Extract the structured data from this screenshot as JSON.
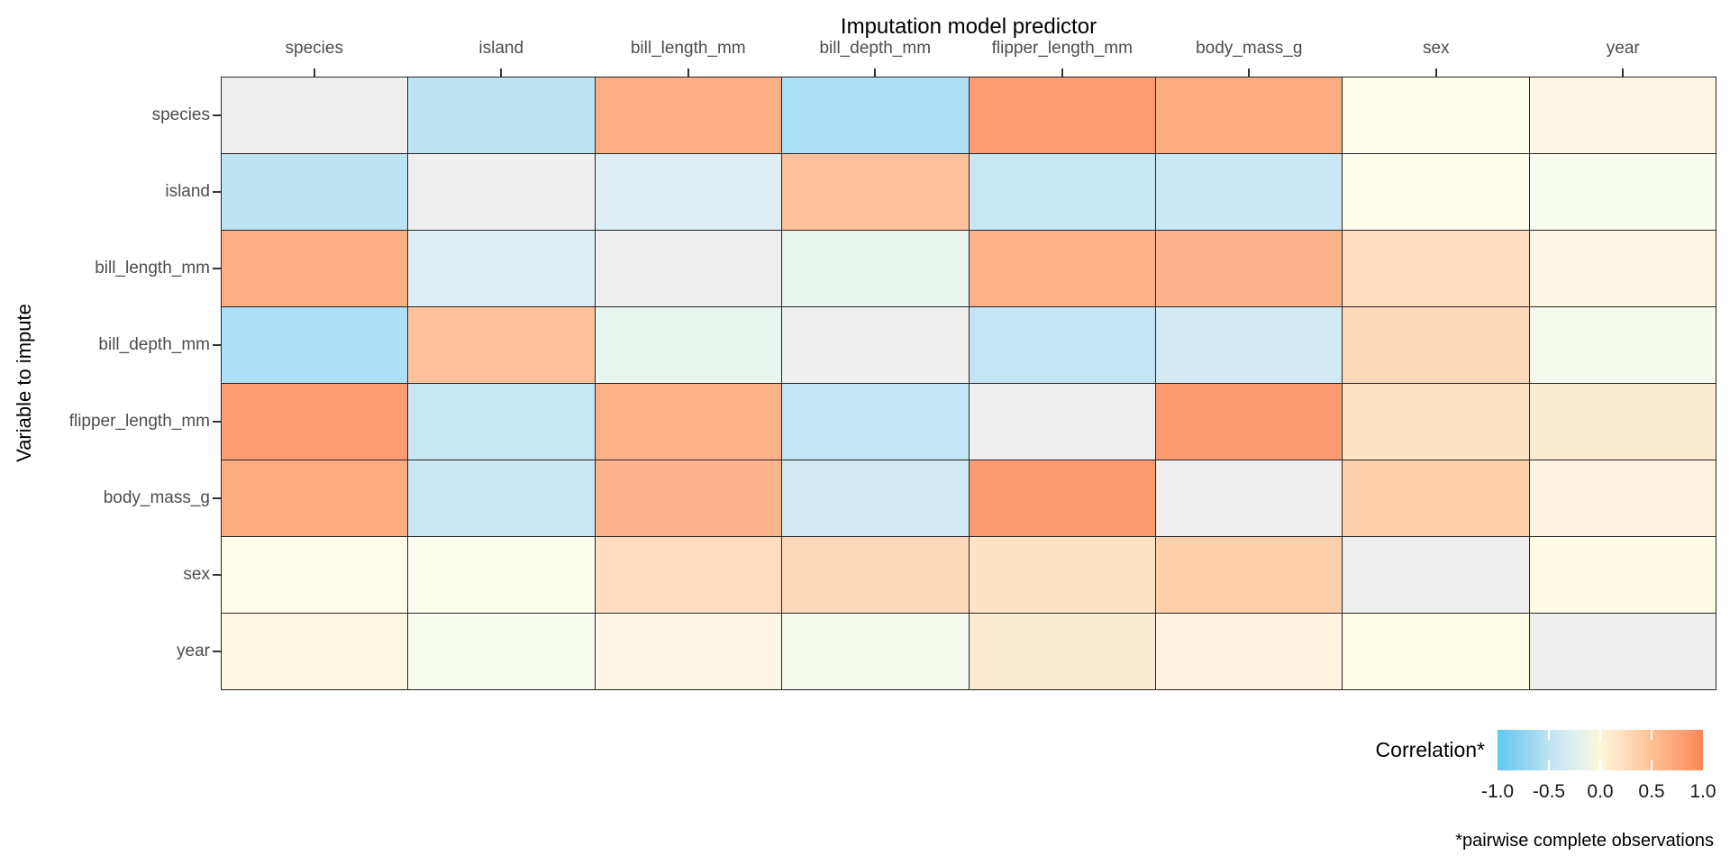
{
  "chart_data": {
    "type": "heatmap",
    "xlabel": "Imputation model predictor",
    "ylabel": "Variable to impute",
    "variables": [
      "species",
      "island",
      "bill_length_mm",
      "bill_depth_mm",
      "flipper_length_mm",
      "body_mass_g",
      "sex",
      "year"
    ],
    "values": [
      [
        null,
        -0.63,
        0.73,
        -0.74,
        0.85,
        0.75,
        0.01,
        0.05
      ],
      [
        -0.63,
        null,
        -0.21,
        0.55,
        -0.51,
        -0.52,
        0.0,
        -0.03
      ],
      [
        0.73,
        -0.21,
        null,
        -0.24,
        0.66,
        0.6,
        0.34,
        0.05
      ],
      [
        -0.74,
        0.55,
        -0.24,
        null,
        -0.58,
        -0.47,
        0.37,
        -0.06
      ],
      [
        0.85,
        -0.51,
        0.66,
        -0.58,
        null,
        0.87,
        0.26,
        0.17
      ],
      [
        0.75,
        -0.52,
        0.6,
        -0.47,
        0.87,
        null,
        0.42,
        0.06
      ],
      [
        0.01,
        0.0,
        0.34,
        0.37,
        0.26,
        0.42,
        null,
        0.01
      ],
      [
        0.05,
        -0.03,
        0.05,
        -0.06,
        0.17,
        0.06,
        0.01,
        null
      ]
    ],
    "cell_colors": [
      [
        "#EFEFEF",
        "#BEE3F2",
        "#FDAE84",
        "#ADDFF7",
        "#FC9C73",
        "#FDAB81",
        "#FEFDE9",
        "#FEF6E5"
      ],
      [
        "#BEE3F2",
        "#EFEFEF",
        "#DDEEF4",
        "#FEC19C",
        "#C8E7F4",
        "#C9E7F4",
        "#FDFDEA",
        "#F7FBF0"
      ],
      [
        "#FDAE84",
        "#DDEEF4",
        "#EFEFEF",
        "#E8F4EE",
        "#FDB189",
        "#FDB48D",
        "#FDDCBF",
        "#FEF6E4"
      ],
      [
        "#ADDFF7",
        "#FEC19C",
        "#E8F4EE",
        "#EFEFEF",
        "#C4E5F4",
        "#D3EAF4",
        "#FDD9BB",
        "#F5FAEF"
      ],
      [
        "#FC9C73",
        "#C8E7F4",
        "#FDB189",
        "#C4E5F4",
        "#EFEFEF",
        "#FC9B71",
        "#FEE3C7",
        "#FBEBD2"
      ],
      [
        "#FDAC82",
        "#C9E7F4",
        "#FDB58E",
        "#D3EAF4",
        "#FC9B71",
        "#EFEFEF",
        "#FED0AC",
        "#FEF3DE"
      ],
      [
        "#FEFDE9",
        "#FBFEEF",
        "#FDDCBF",
        "#FDD9BB",
        "#FEE3C7",
        "#FED0AC",
        "#EFEFEF",
        "#FEFCE6"
      ],
      [
        "#FEF5E3",
        "#F7FBF0",
        "#FEF6E4",
        "#F5FAEF",
        "#FBEBD2",
        "#FEF3DE",
        "#FFFDE6",
        "#EFEFEF"
      ]
    ],
    "na_color": "#EFEFEF",
    "grid_line_color": "#262626",
    "axis_text_color": "#4D4D4D",
    "axis_title_color": "#000000",
    "legend": {
      "title": "Correlation*",
      "position": "bottom-right",
      "tick_labels": [
        "-1.0",
        "-0.5",
        "0.0",
        "0.5",
        "1.0"
      ],
      "tick_positions_pct": [
        0,
        25,
        50,
        75,
        100
      ],
      "bar_tick_positions_pct": [
        25,
        50,
        75
      ],
      "bar_tick_color": "#FFFFFF",
      "gradient_stops": [
        "#5FC8F0",
        "#8ED3F2",
        "#BEE3F2",
        "#E0EFF0",
        "#FBF7D8",
        "#FDDCBD",
        "#FEC093",
        "#FCA578",
        "#FA8553"
      ]
    },
    "footnote": "*pairwise complete observations",
    "value_range": [
      -1.0,
      1.0
    ]
  }
}
